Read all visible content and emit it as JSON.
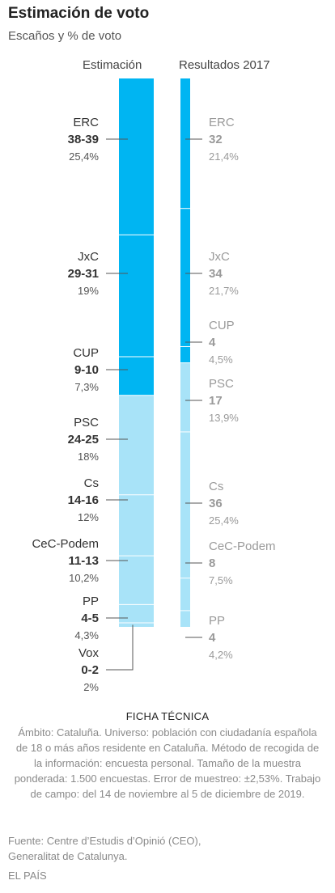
{
  "header": {
    "title": "Estimación de voto",
    "subtitle": "Escaños y % de voto"
  },
  "colors": {
    "independentist": "#00b5f2",
    "non_independentist": "#a8e3f8",
    "separator": "#ffffff",
    "leader_line": "#555555",
    "label_strong": "#333333",
    "label_muted": "#9a9a9a"
  },
  "chart_data": {
    "type": "stacked_bar",
    "unit_seats": "Escaños",
    "unit_vote": "% de voto",
    "total_seats": 135,
    "series": [
      {
        "name": "Estimación",
        "parties": [
          {
            "party": "ERC",
            "seats_label": "38-39",
            "seats_min": 38,
            "seats_max": 39,
            "vote_label": "25,4%",
            "vote_pct": 25.4,
            "group": "independentist"
          },
          {
            "party": "JxC",
            "seats_label": "29-31",
            "seats_min": 29,
            "seats_max": 31,
            "vote_label": "19%",
            "vote_pct": 19,
            "group": "independentist"
          },
          {
            "party": "CUP",
            "seats_label": "9-10",
            "seats_min": 9,
            "seats_max": 10,
            "vote_label": "7,3%",
            "vote_pct": 7.3,
            "group": "independentist"
          },
          {
            "party": "PSC",
            "seats_label": "24-25",
            "seats_min": 24,
            "seats_max": 25,
            "vote_label": "18%",
            "vote_pct": 18,
            "group": "non_independentist"
          },
          {
            "party": "Cs",
            "seats_label": "14-16",
            "seats_min": 14,
            "seats_max": 16,
            "vote_label": "12%",
            "vote_pct": 12,
            "group": "non_independentist"
          },
          {
            "party": "CeC-Podem",
            "seats_label": "11-13",
            "seats_min": 11,
            "seats_max": 13,
            "vote_label": "10,2%",
            "vote_pct": 10.2,
            "group": "non_independentist"
          },
          {
            "party": "PP",
            "seats_label": "4-5",
            "seats_min": 4,
            "seats_max": 5,
            "vote_label": "4,3%",
            "vote_pct": 4.3,
            "group": "non_independentist"
          },
          {
            "party": "Vox",
            "seats_label": "0-2",
            "seats_min": 0,
            "seats_max": 2,
            "vote_label": "2%",
            "vote_pct": 2,
            "group": "non_independentist"
          }
        ]
      },
      {
        "name": "Resultados 2017",
        "parties": [
          {
            "party": "ERC",
            "seats_label": "32",
            "seats_min": 32,
            "seats_max": 32,
            "vote_label": "21,4%",
            "vote_pct": 21.4,
            "group": "independentist"
          },
          {
            "party": "JxC",
            "seats_label": "34",
            "seats_min": 34,
            "seats_max": 34,
            "vote_label": "21,7%",
            "vote_pct": 21.7,
            "group": "independentist"
          },
          {
            "party": "CUP",
            "seats_label": "4",
            "seats_min": 4,
            "seats_max": 4,
            "vote_label": "4,5%",
            "vote_pct": 4.5,
            "group": "independentist"
          },
          {
            "party": "PSC",
            "seats_label": "17",
            "seats_min": 17,
            "seats_max": 17,
            "vote_label": "13,9%",
            "vote_pct": 13.9,
            "group": "non_independentist"
          },
          {
            "party": "Cs",
            "seats_label": "36",
            "seats_min": 36,
            "seats_max": 36,
            "vote_label": "25,4%",
            "vote_pct": 25.4,
            "group": "non_independentist"
          },
          {
            "party": "CeC-Podem",
            "seats_label": "8",
            "seats_min": 8,
            "seats_max": 8,
            "vote_label": "7,5%",
            "vote_pct": 7.5,
            "group": "non_independentist"
          },
          {
            "party": "PP",
            "seats_label": "4",
            "seats_min": 4,
            "seats_max": 4,
            "vote_label": "4,2%",
            "vote_pct": 4.2,
            "group": "non_independentist"
          }
        ]
      }
    ]
  },
  "ficha": {
    "title": "FICHA TÉCNICA",
    "body": "Ámbito: Cataluña. Universo: población con ciudadanía española de 18 o más años residente en Cataluña. Método de recogida de la información: encuesta personal. Tamaño de la muestra ponderada: 1.500 encuestas. Error de muestreo: ±2,53%. Trabajo de campo: del 14 de noviembre al 5 de diciembre de 2019."
  },
  "source": "Fuente: Centre d’Estudis d’Opinió (CEO), Generalitat de Catalunya.",
  "credit": "EL PAÍS"
}
